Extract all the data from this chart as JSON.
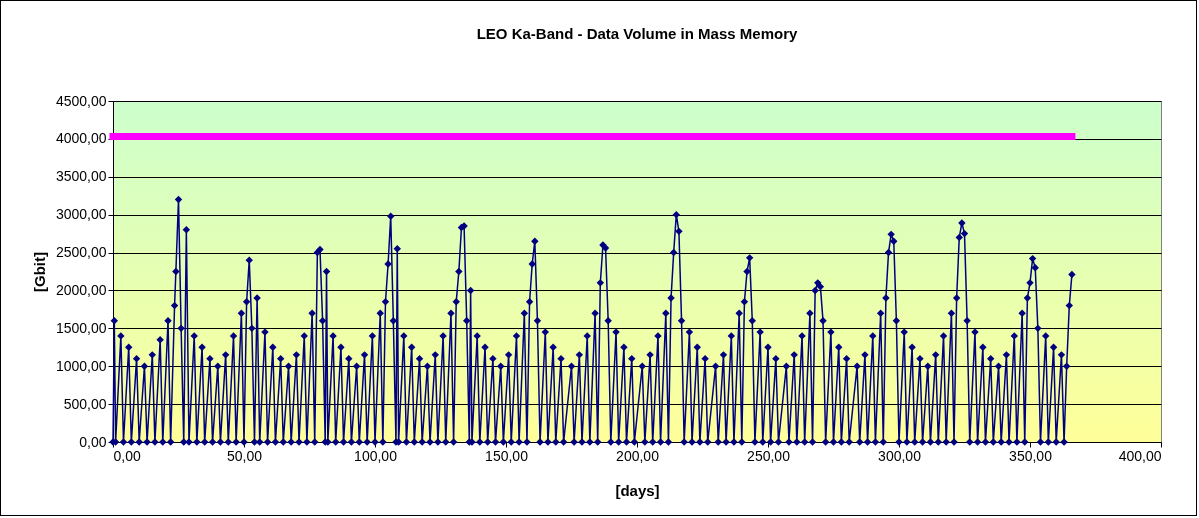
{
  "chart_data": {
    "type": "line",
    "title": "LEO Ka-Band - Data Volume in Mass Memory",
    "xlabel": "[days]",
    "ylabel": "[Gbit]",
    "grid": "y",
    "legend": false,
    "marker": "diamond",
    "line_style": "solid",
    "xlim": [
      0,
      400
    ],
    "xticks": [
      {
        "value": 0,
        "label": "0,00"
      },
      {
        "value": 50,
        "label": "50,00"
      },
      {
        "value": 100,
        "label": "100,00"
      },
      {
        "value": 150,
        "label": "150,00"
      },
      {
        "value": 200,
        "label": "200,00"
      },
      {
        "value": 250,
        "label": "250,00"
      },
      {
        "value": 300,
        "label": "300,00"
      },
      {
        "value": 350,
        "label": "350,00"
      },
      {
        "value": 400,
        "label": "400,00"
      }
    ],
    "ylim": [
      0,
      4500
    ],
    "yticks": [
      {
        "value": 0,
        "label": "0,00"
      },
      {
        "value": 500,
        "label": "500,00"
      },
      {
        "value": 1000,
        "label": "1000,00"
      },
      {
        "value": 1500,
        "label": "1500,00"
      },
      {
        "value": 2000,
        "label": "2000,00"
      },
      {
        "value": 2500,
        "label": "2500,00"
      },
      {
        "value": 3000,
        "label": "3000,00"
      },
      {
        "value": 3500,
        "label": "3500,00"
      },
      {
        "value": 4000,
        "label": "4000,00"
      },
      {
        "value": 4500,
        "label": "4500,00"
      }
    ],
    "series": [
      {
        "color": "#000080",
        "x": [
          0,
          0.5,
          1,
          3,
          4,
          6,
          7,
          9,
          10,
          12,
          13,
          15,
          16,
          18,
          19,
          21,
          22,
          23.5,
          24,
          25,
          26,
          27,
          28,
          29,
          31,
          32,
          34,
          35,
          37,
          38,
          40,
          41,
          43,
          44,
          46,
          47,
          49,
          50,
          51,
          52,
          53,
          54,
          55,
          56,
          58,
          59,
          61,
          62,
          64,
          65,
          67,
          68,
          70,
          71,
          73,
          74,
          76,
          77,
          78,
          79,
          80,
          81,
          81.5,
          82,
          84,
          85,
          87,
          88,
          90,
          91,
          93,
          94,
          96,
          97,
          99,
          100,
          102,
          103,
          104,
          105,
          106,
          107,
          108,
          108.5,
          109,
          111,
          112,
          114,
          115,
          117,
          118,
          120,
          121,
          123,
          124,
          126,
          127,
          129,
          130,
          131,
          132,
          133,
          134,
          135,
          136,
          136.5,
          137,
          139,
          140,
          142,
          143,
          145,
          146,
          148,
          149,
          151,
          152,
          154,
          155,
          157,
          158,
          159,
          160,
          161,
          162,
          163,
          165,
          166,
          168,
          169,
          171,
          172,
          175,
          176,
          178,
          179,
          181,
          182,
          184,
          185,
          186,
          187,
          188,
          189,
          190,
          192,
          193,
          195,
          196,
          198,
          199,
          202,
          203,
          205,
          206,
          208,
          209,
          211,
          212,
          213,
          214,
          215,
          216,
          217,
          218,
          220,
          221,
          223,
          224,
          226,
          227,
          230,
          231,
          233,
          234,
          236,
          237,
          239,
          240,
          241,
          242,
          243,
          244,
          245,
          247,
          248,
          250,
          251,
          253,
          254,
          257,
          258,
          260,
          261,
          263,
          264,
          266,
          267,
          268,
          269,
          270,
          271,
          272,
          274,
          275,
          277,
          278,
          280,
          281,
          284,
          285,
          287,
          288,
          290,
          291,
          293,
          294,
          295,
          296,
          297,
          298,
          299,
          300,
          302,
          303,
          305,
          306,
          308,
          309,
          311,
          312,
          314,
          315,
          317,
          318,
          320,
          321,
          322,
          323,
          324,
          325,
          326,
          327,
          329,
          330,
          332,
          333,
          335,
          336,
          338,
          339,
          341,
          342,
          344,
          345,
          347,
          348,
          349,
          350,
          351,
          352,
          353,
          354,
          356,
          357,
          359,
          360,
          362,
          363,
          364,
          365,
          366
        ],
        "values": [
          0,
          1600,
          0,
          1400,
          0,
          1250,
          0,
          1100,
          0,
          1000,
          0,
          1150,
          0,
          1350,
          0,
          1600,
          0,
          1800,
          2250,
          3200,
          1500,
          0,
          2800,
          0,
          1400,
          0,
          1250,
          0,
          1100,
          0,
          1000,
          0,
          1150,
          0,
          1400,
          0,
          1700,
          0,
          1850,
          2400,
          1500,
          0,
          1900,
          0,
          1450,
          0,
          1250,
          0,
          1100,
          0,
          1000,
          0,
          1150,
          0,
          1400,
          0,
          1700,
          0,
          2500,
          2540,
          1600,
          0,
          2250,
          0,
          1400,
          0,
          1250,
          0,
          1100,
          0,
          1000,
          0,
          1150,
          0,
          1400,
          0,
          1700,
          0,
          1850,
          2350,
          2980,
          1600,
          0,
          2550,
          0,
          1400,
          0,
          1250,
          0,
          1100,
          0,
          1000,
          0,
          1150,
          0,
          1400,
          0,
          1700,
          0,
          1850,
          2250,
          2830,
          2850,
          1600,
          0,
          2000,
          0,
          1400,
          0,
          1250,
          0,
          1100,
          0,
          1000,
          0,
          1150,
          0,
          1400,
          0,
          1700,
          0,
          1850,
          2350,
          2650,
          1600,
          0,
          1450,
          0,
          1250,
          0,
          1100,
          0,
          1000,
          0,
          1150,
          0,
          1400,
          0,
          1700,
          0,
          2100,
          2600,
          2560,
          1600,
          0,
          1450,
          0,
          1250,
          0,
          1100,
          0,
          1000,
          0,
          1150,
          0,
          1400,
          0,
          1700,
          0,
          1900,
          2500,
          3000,
          2780,
          1600,
          0,
          1450,
          0,
          1250,
          0,
          1100,
          0,
          1000,
          0,
          1150,
          0,
          1400,
          0,
          1700,
          0,
          1850,
          2250,
          2430,
          1600,
          0,
          1450,
          0,
          1250,
          0,
          1100,
          0,
          1000,
          0,
          1150,
          0,
          1400,
          0,
          1700,
          0,
          2000,
          2100,
          2050,
          1600,
          0,
          1450,
          0,
          1250,
          0,
          1100,
          0,
          1000,
          0,
          1150,
          0,
          1400,
          0,
          1700,
          0,
          1900,
          2500,
          2740,
          2650,
          1600,
          0,
          1450,
          0,
          1250,
          0,
          1100,
          0,
          1000,
          0,
          1150,
          0,
          1400,
          0,
          1700,
          0,
          1900,
          2700,
          2890,
          2750,
          1600,
          0,
          1450,
          0,
          1250,
          0,
          1100,
          0,
          1000,
          0,
          1150,
          0,
          1400,
          0,
          1700,
          0,
          1900,
          2100,
          2420,
          2300,
          1500,
          0,
          1400,
          0,
          1250,
          0,
          1150,
          0,
          1000,
          1800,
          2210
        ]
      },
      {
        "color": "#ff00ff",
        "marker": "none",
        "x": [
          0,
          366
        ],
        "values": [
          4030,
          4030
        ]
      }
    ]
  }
}
